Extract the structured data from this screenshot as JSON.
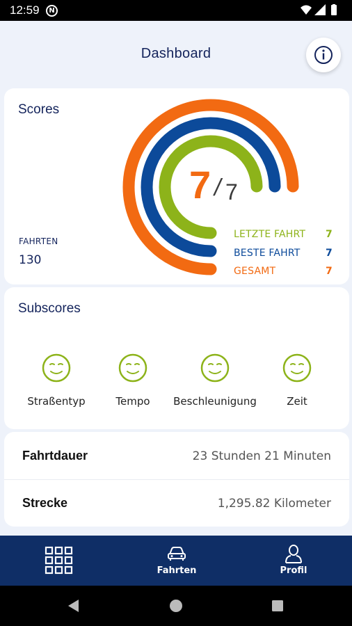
{
  "status_bar": {
    "time": "12:59"
  },
  "app_bar": {
    "title": "Dashboard",
    "info_icon": "info-circle-icon"
  },
  "scores": {
    "title": "Scores",
    "fahrten_label": "FAHRTEN",
    "fahrten_value": "130",
    "score_value": "7",
    "score_separator": "/",
    "score_max": "7",
    "legend": [
      {
        "label": "LETZTE FAHRT",
        "value": "7",
        "color": "#8db31a"
      },
      {
        "label": "BESTE FAHRT",
        "value": "7",
        "color": "#0c4a9a"
      },
      {
        "label": "GESAMT",
        "value": "7",
        "color": "#f26a12"
      }
    ]
  },
  "subscores": {
    "title": "Subscores",
    "items": [
      {
        "label": "Straßentyp",
        "icon": "smiley-icon"
      },
      {
        "label": "Tempo",
        "icon": "smiley-icon"
      },
      {
        "label": "Beschleunigung",
        "icon": "smiley-icon"
      },
      {
        "label": "Zeit",
        "icon": "smiley-icon"
      }
    ],
    "icon_color": "#8db31a"
  },
  "trip_info": [
    {
      "label": "Fahrtdauer",
      "value": "23 Stunden 21 Minuten"
    },
    {
      "label": "Strecke",
      "value": "1,295.82 Kilometer"
    }
  ],
  "bottom_nav": {
    "items": [
      {
        "label": "",
        "icon": "grid-icon"
      },
      {
        "label": "Fahrten",
        "icon": "car-icon"
      },
      {
        "label": "Profil",
        "icon": "profile-icon"
      }
    ]
  },
  "colors": {
    "navy": "#0f2e66",
    "orange": "#f26a12",
    "blue": "#0c4a9a",
    "green": "#8db31a"
  }
}
